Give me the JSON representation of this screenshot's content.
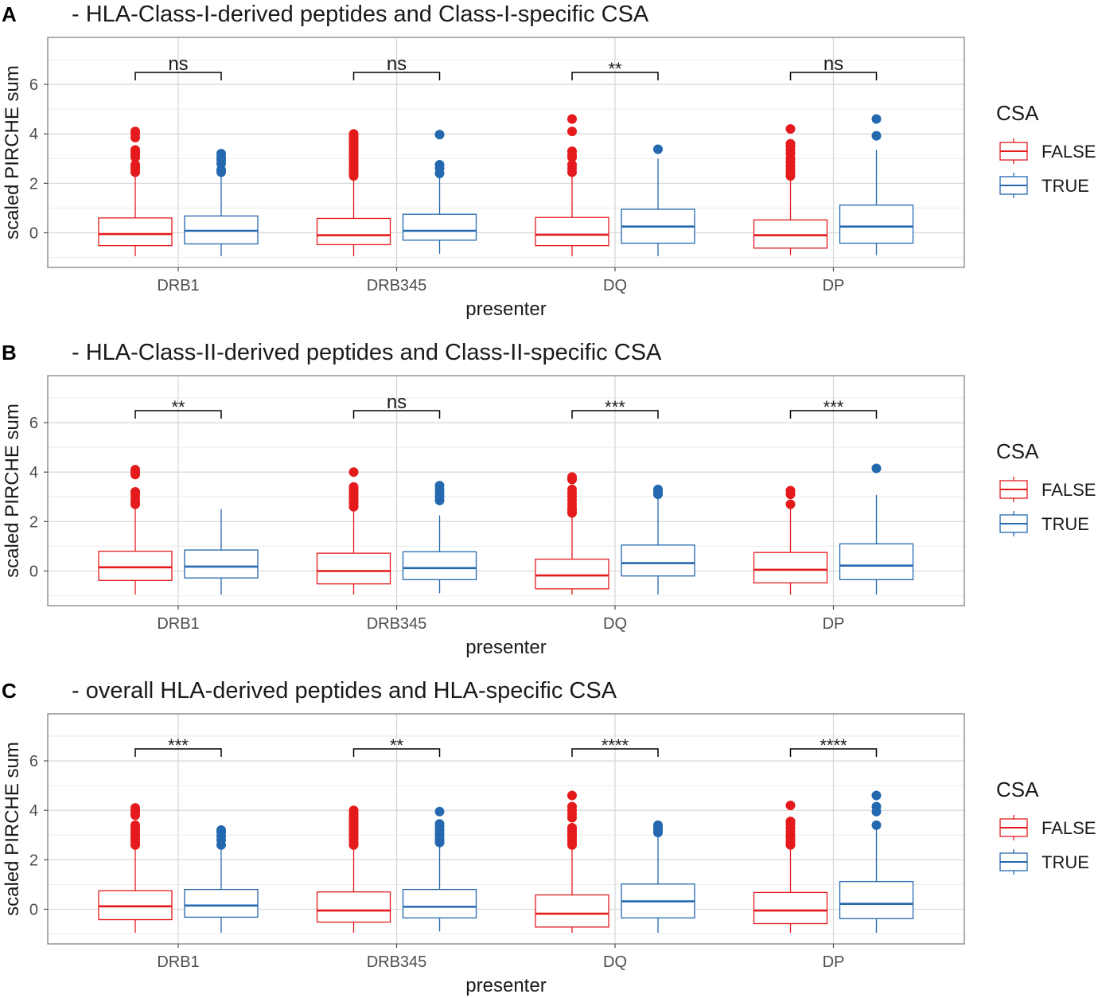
{
  "colors": {
    "false": "#E41A1C",
    "true": "#2468AF",
    "grid": "#D9D9D9",
    "panel_border": "#8C8C8C",
    "axis_text": "#4D4D4D",
    "text": "#1A1A1A"
  },
  "chart_data": [
    {
      "type": "box",
      "panel_letter": "A",
      "title": "- HLA-Class-I-derived peptides and Class-I-specific CSA",
      "xlabel": "presenter",
      "ylabel": "scaled PIRCHE sum",
      "ylim": [
        -1.4,
        7.9
      ],
      "yticks": [
        0,
        2,
        4,
        6
      ],
      "categories": [
        "DRB1",
        "DRB345",
        "DQ",
        "DP"
      ],
      "legend": {
        "title": "CSA",
        "entries": [
          "FALSE",
          "TRUE"
        ]
      },
      "significance": [
        "ns",
        "ns",
        "**",
        "ns"
      ],
      "series": [
        {
          "name": "FALSE",
          "boxes": [
            {
              "whislo": -0.95,
              "q1": -0.52,
              "med": -0.05,
              "q3": 0.6,
              "whishi": 2.35,
              "outliers": [
                2.45,
                2.55,
                2.65,
                2.75,
                3.05,
                3.15,
                3.25,
                3.35,
                3.85,
                4.0,
                4.1
              ]
            },
            {
              "whislo": -0.95,
              "q1": -0.48,
              "med": -0.1,
              "q3": 0.58,
              "whishi": 2.2,
              "outliers": [
                2.3,
                2.4,
                2.5,
                2.6,
                2.7,
                2.8,
                2.9,
                3.0,
                3.1,
                3.2,
                3.3,
                3.4,
                3.5,
                3.6,
                3.7,
                3.8,
                3.9,
                4.0
              ]
            },
            {
              "whislo": -0.95,
              "q1": -0.52,
              "med": -0.08,
              "q3": 0.62,
              "whishi": 2.3,
              "outliers": [
                2.45,
                2.6,
                2.75,
                3.05,
                3.15,
                3.3,
                4.1,
                4.6
              ]
            },
            {
              "whislo": -0.9,
              "q1": -0.62,
              "med": -0.1,
              "q3": 0.52,
              "whishi": 2.2,
              "outliers": [
                2.3,
                2.4,
                2.55,
                2.7,
                2.85,
                3.0,
                3.2,
                3.35,
                3.5,
                3.6,
                4.2
              ]
            }
          ]
        },
        {
          "name": "TRUE",
          "boxes": [
            {
              "whislo": -0.95,
              "q1": -0.45,
              "med": 0.08,
              "q3": 0.68,
              "whishi": 2.3,
              "outliers": [
                2.45,
                2.55,
                2.8,
                2.95,
                3.05,
                3.2
              ]
            },
            {
              "whislo": -0.85,
              "q1": -0.3,
              "med": 0.08,
              "q3": 0.75,
              "whishi": 2.3,
              "outliers": [
                2.4,
                2.6,
                2.75,
                3.97
              ]
            },
            {
              "whislo": -0.95,
              "q1": -0.42,
              "med": 0.25,
              "q3": 0.95,
              "whishi": 3.0,
              "outliers": [
                3.38
              ]
            },
            {
              "whislo": -0.9,
              "q1": -0.42,
              "med": 0.25,
              "q3": 1.12,
              "whishi": 3.35,
              "outliers": [
                3.92,
                4.6
              ]
            }
          ]
        }
      ]
    },
    {
      "type": "box",
      "panel_letter": "B",
      "title": "- HLA-Class-II-derived peptides and Class-II-specific CSA",
      "xlabel": "presenter",
      "ylabel": "scaled PIRCHE sum",
      "ylim": [
        -1.4,
        7.9
      ],
      "yticks": [
        0,
        2,
        4,
        6
      ],
      "categories": [
        "DRB1",
        "DRB345",
        "DQ",
        "DP"
      ],
      "legend": {
        "title": "CSA",
        "entries": [
          "FALSE",
          "TRUE"
        ]
      },
      "significance": [
        "**",
        "ns",
        "***",
        "***"
      ],
      "series": [
        {
          "name": "FALSE",
          "boxes": [
            {
              "whislo": -0.95,
              "q1": -0.38,
              "med": 0.15,
              "q3": 0.8,
              "whishi": 2.6,
              "outliers": [
                2.7,
                2.8,
                2.95,
                3.1,
                3.2,
                3.9,
                4.0,
                4.1
              ]
            },
            {
              "whislo": -0.95,
              "q1": -0.52,
              "med": 0.0,
              "q3": 0.72,
              "whishi": 2.5,
              "outliers": [
                2.6,
                2.7,
                2.8,
                2.9,
                3.0,
                3.1,
                3.2,
                3.3,
                3.4,
                4.0
              ]
            },
            {
              "whislo": -0.95,
              "q1": -0.72,
              "med": -0.18,
              "q3": 0.48,
              "whishi": 2.25,
              "outliers": [
                2.35,
                2.45,
                2.55,
                2.7,
                2.85,
                3.0,
                3.15,
                3.3,
                3.7,
                3.8
              ]
            },
            {
              "whislo": -0.95,
              "q1": -0.48,
              "med": 0.05,
              "q3": 0.75,
              "whishi": 2.6,
              "outliers": [
                2.7,
                3.1,
                3.25
              ]
            }
          ]
        },
        {
          "name": "TRUE",
          "boxes": [
            {
              "whislo": -0.95,
              "q1": -0.28,
              "med": 0.18,
              "q3": 0.85,
              "whishi": 2.5,
              "outliers": []
            },
            {
              "whislo": -0.9,
              "q1": -0.35,
              "med": 0.12,
              "q3": 0.78,
              "whishi": 2.25,
              "outliers": [
                2.85,
                3.0,
                3.15,
                3.3,
                3.45
              ]
            },
            {
              "whislo": -0.95,
              "q1": -0.2,
              "med": 0.32,
              "q3": 1.05,
              "whishi": 3.0,
              "outliers": [
                3.1,
                3.2,
                3.3
              ]
            },
            {
              "whislo": -0.95,
              "q1": -0.35,
              "med": 0.22,
              "q3": 1.1,
              "whishi": 3.08,
              "outliers": [
                4.15
              ]
            }
          ]
        }
      ]
    },
    {
      "type": "box",
      "panel_letter": "C",
      "title": "- overall HLA-derived peptides and HLA-specific CSA",
      "xlabel": "presenter",
      "ylabel": "scaled PIRCHE sum",
      "ylim": [
        -1.4,
        7.9
      ],
      "yticks": [
        0,
        2,
        4,
        6
      ],
      "categories": [
        "DRB1",
        "DRB345",
        "DQ",
        "DP"
      ],
      "legend": {
        "title": "CSA",
        "entries": [
          "FALSE",
          "TRUE"
        ]
      },
      "significance": [
        "***",
        "**",
        "****",
        "****"
      ],
      "series": [
        {
          "name": "FALSE",
          "boxes": [
            {
              "whislo": -0.95,
              "q1": -0.42,
              "med": 0.12,
              "q3": 0.75,
              "whishi": 2.5,
              "outliers": [
                2.6,
                2.7,
                2.8,
                2.9,
                3.0,
                3.1,
                3.2,
                3.3,
                3.4,
                3.8,
                3.9,
                4.0,
                4.1
              ]
            },
            {
              "whislo": -0.95,
              "q1": -0.52,
              "med": -0.05,
              "q3": 0.7,
              "whishi": 2.5,
              "outliers": [
                2.6,
                2.7,
                2.8,
                2.9,
                3.0,
                3.1,
                3.2,
                3.3,
                3.4,
                3.5,
                3.6,
                3.7,
                3.8,
                3.9,
                4.0
              ]
            },
            {
              "whislo": -0.95,
              "q1": -0.72,
              "med": -0.18,
              "q3": 0.58,
              "whishi": 2.5,
              "outliers": [
                2.6,
                2.7,
                2.8,
                2.9,
                3.0,
                3.1,
                3.2,
                3.3,
                3.7,
                3.85,
                4.0,
                4.15,
                4.6
              ]
            },
            {
              "whislo": -0.95,
              "q1": -0.58,
              "med": -0.05,
              "q3": 0.68,
              "whishi": 2.5,
              "outliers": [
                2.6,
                2.7,
                2.8,
                2.9,
                3.0,
                3.15,
                3.3,
                3.45,
                3.55,
                4.2
              ]
            }
          ]
        },
        {
          "name": "TRUE",
          "boxes": [
            {
              "whislo": -0.95,
              "q1": -0.32,
              "med": 0.15,
              "q3": 0.8,
              "whishi": 2.5,
              "outliers": [
                2.6,
                2.8,
                2.95,
                3.1,
                3.2
              ]
            },
            {
              "whislo": -0.9,
              "q1": -0.35,
              "med": 0.1,
              "q3": 0.8,
              "whishi": 2.6,
              "outliers": [
                2.7,
                2.8,
                2.9,
                3.05,
                3.2,
                3.35,
                3.45,
                3.95
              ]
            },
            {
              "whislo": -0.95,
              "q1": -0.35,
              "med": 0.32,
              "q3": 1.02,
              "whishi": 3.05,
              "outliers": [
                3.1,
                3.2,
                3.3,
                3.4
              ]
            },
            {
              "whislo": -0.95,
              "q1": -0.38,
              "med": 0.22,
              "q3": 1.12,
              "whishi": 3.3,
              "outliers": [
                3.4,
                3.95,
                4.15,
                4.6
              ]
            }
          ]
        }
      ]
    }
  ]
}
